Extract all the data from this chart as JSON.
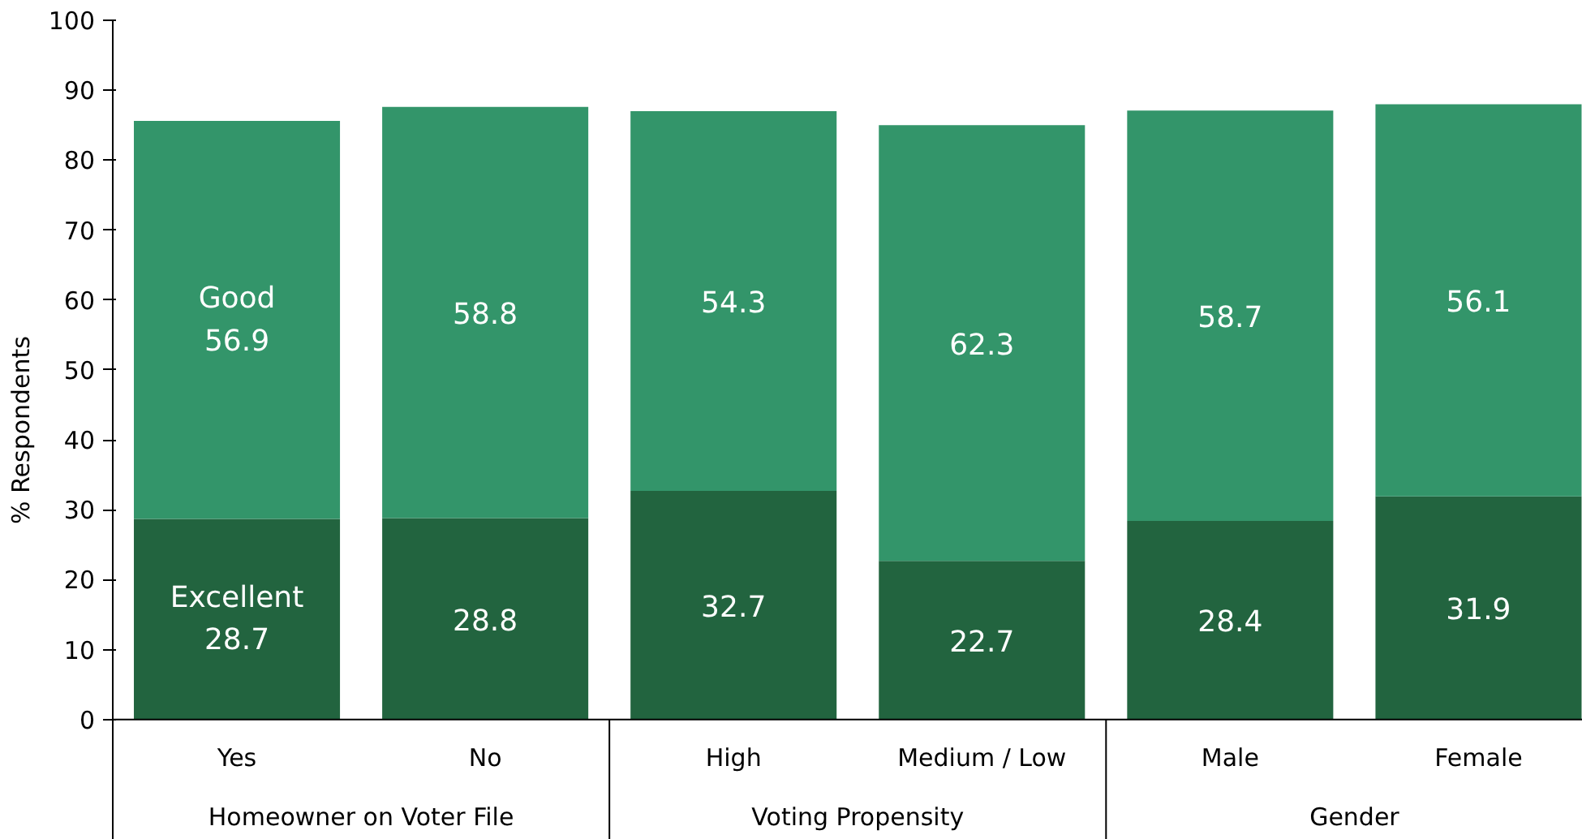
{
  "chart_data": {
    "type": "bar",
    "stacked": true,
    "ylabel": "% Respondents",
    "categories": [
      "Yes",
      "No",
      "High",
      "Medium / Low",
      "Male",
      "Female"
    ],
    "series": [
      {
        "name": "Excellent",
        "color": "#22643f",
        "values": [
          28.7,
          28.8,
          32.7,
          22.7,
          28.4,
          31.9
        ]
      },
      {
        "name": "Good",
        "color": "#33956a",
        "values": [
          56.9,
          58.8,
          54.3,
          62.3,
          58.7,
          56.1
        ]
      }
    ],
    "annotations": [
      "Homeowner on Voter File",
      "Voting Propensity",
      "Gender"
    ],
    "ylim": [
      0,
      100
    ],
    "yticks": [
      0,
      10,
      20,
      30,
      40,
      50,
      60,
      70,
      80,
      90,
      100
    ],
    "data_labels": true,
    "grid": false
  }
}
